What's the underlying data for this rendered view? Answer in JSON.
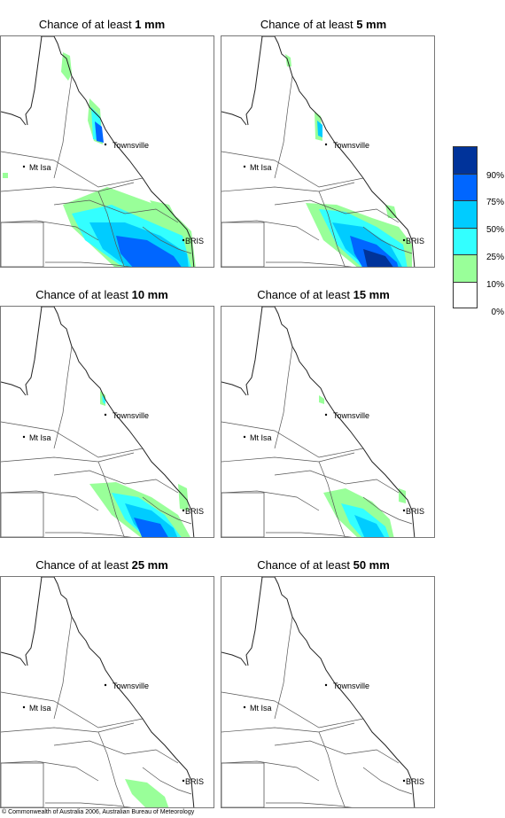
{
  "panels": [
    {
      "prefix": "Chance of at least ",
      "amount": "1 mm"
    },
    {
      "prefix": "Chance of at least ",
      "amount": "5 mm"
    },
    {
      "prefix": "Chance of at least ",
      "amount": "10 mm"
    },
    {
      "prefix": "Chance of at least ",
      "amount": "15 mm"
    },
    {
      "prefix": "Chance of at least ",
      "amount": "25 mm"
    },
    {
      "prefix": "Chance of at least ",
      "amount": "50 mm"
    }
  ],
  "places": {
    "townsville": "Townsville",
    "mt_isa": "Mt Isa",
    "brisbane": "BRIS"
  },
  "legend": {
    "labels": [
      "90%",
      "75%",
      "50%",
      "25%",
      "10%",
      "0%"
    ],
    "colors": [
      "#00339a",
      "#0066ff",
      "#00ccff",
      "#33ffff",
      "#99ff99",
      "#ffffff"
    ]
  },
  "copyright": "© Commonwealth of Australia 2006, Australian Bureau of Meteorology"
}
